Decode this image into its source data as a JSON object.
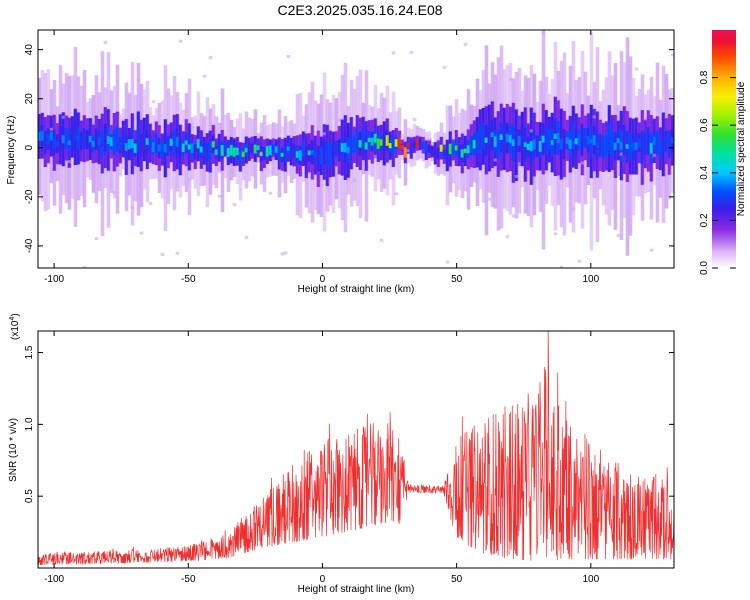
{
  "figure": {
    "title": "C2E3.2025.035.16.24.E08"
  },
  "chart_data": [
    {
      "type": "heatmap",
      "name": "spectrogram",
      "xlabel": "Height of straight line (km)",
      "ylabel": "Frequency (Hz)",
      "xlim": [
        -106,
        131
      ],
      "ylim": [
        -49,
        48
      ],
      "xticks": [
        -100,
        -50,
        0,
        50,
        100
      ],
      "yticks": [
        -40,
        -20,
        0,
        20,
        40
      ],
      "colorbar": {
        "label": "Normalized spectral amplitude",
        "range": [
          0.0,
          1.0
        ],
        "ticks": [
          "0.0",
          "0.2",
          "0.4",
          "0.6",
          "0.8"
        ]
      },
      "band": {
        "x": [
          -105,
          -90,
          -75,
          -60,
          -45,
          -30,
          -15,
          0,
          10,
          20,
          30,
          40,
          50,
          60,
          75,
          90,
          105,
          120,
          130
        ],
        "center_hz": [
          4,
          3,
          2,
          1,
          0,
          -2,
          -1,
          -3,
          1,
          3,
          0,
          0,
          -2,
          4,
          2,
          3,
          2,
          1,
          2
        ],
        "halfwidth_hz": [
          10,
          9,
          9,
          9,
          7,
          5,
          6,
          9,
          10,
          9,
          4,
          3,
          6,
          11,
          12,
          12,
          11,
          11,
          11
        ],
        "peak_amplitude": [
          0.35,
          0.35,
          0.4,
          0.4,
          0.5,
          0.55,
          0.5,
          0.4,
          0.45,
          0.5,
          0.95,
          1.0,
          0.6,
          0.45,
          0.4,
          0.4,
          0.4,
          0.4,
          0.4
        ]
      }
    },
    {
      "type": "line",
      "name": "snr",
      "xlabel": "Height of straight line (km)",
      "ylabel": "SNR (10 * v/v)",
      "yscale_note": "(x10",
      "yscale_exp": "4",
      "yscale_close": ")",
      "xlim": [
        -106,
        131
      ],
      "ylim": [
        0,
        1.65
      ],
      "xticks": [
        -100,
        -50,
        0,
        50,
        100
      ],
      "yticks": [
        0.5,
        1.0,
        1.5
      ],
      "series": [
        {
          "color": "#f03030",
          "envelope_x": [
            -106,
            -80,
            -60,
            -45,
            -35,
            -30,
            -20,
            -10,
            0,
            10,
            20,
            25,
            30,
            32,
            45,
            50,
            60,
            70,
            80,
            83,
            90,
            100,
            110,
            120,
            131
          ],
          "envelope_low": [
            0.02,
            0.03,
            0.04,
            0.05,
            0.07,
            0.1,
            0.15,
            0.18,
            0.22,
            0.25,
            0.3,
            0.32,
            0.3,
            0.52,
            0.52,
            0.2,
            0.1,
            0.06,
            0.05,
            0.05,
            0.06,
            0.06,
            0.06,
            0.06,
            0.06
          ],
          "envelope_high": [
            0.1,
            0.12,
            0.14,
            0.18,
            0.25,
            0.35,
            0.55,
            0.75,
            0.9,
            0.95,
            1.02,
            1.1,
            0.95,
            0.58,
            0.58,
            0.9,
            1.05,
            1.15,
            1.25,
            1.6,
            1.1,
            0.9,
            0.75,
            0.65,
            0.6
          ]
        }
      ]
    }
  ]
}
